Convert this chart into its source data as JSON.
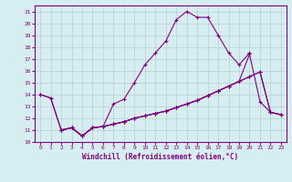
{
  "xlabel": "Windchill (Refroidissement éolien,°C)",
  "background_color": "#d6eef2",
  "line_color": "#800080",
  "grid_color": "#b0c8cc",
  "xlim": [
    -0.5,
    23.5
  ],
  "ylim": [
    10.0,
    21.5
  ],
  "yticks": [
    10,
    11,
    12,
    13,
    14,
    15,
    16,
    17,
    18,
    19,
    20,
    21
  ],
  "xticks": [
    0,
    1,
    2,
    3,
    4,
    5,
    6,
    7,
    8,
    9,
    10,
    11,
    12,
    13,
    14,
    15,
    16,
    17,
    18,
    19,
    20,
    21,
    22,
    23
  ],
  "line1_x": [
    0,
    1,
    2,
    3,
    4,
    5,
    6,
    7,
    8,
    9,
    10,
    11,
    12,
    13,
    14,
    15,
    16,
    17,
    18,
    19,
    20
  ],
  "line1_y": [
    14.0,
    13.7,
    11.0,
    11.2,
    10.5,
    11.2,
    11.3,
    13.2,
    13.6,
    15.0,
    16.5,
    17.5,
    18.5,
    20.3,
    21.0,
    20.5,
    20.5,
    19.0,
    17.5,
    16.5,
    17.5
  ],
  "line2_x": [
    2,
    3,
    4,
    5,
    6,
    7,
    8,
    9,
    10,
    11,
    12,
    13,
    14,
    15,
    16,
    17,
    18,
    19,
    20,
    21,
    22,
    23
  ],
  "line2_y": [
    11.0,
    11.2,
    10.5,
    11.2,
    11.3,
    11.5,
    11.7,
    12.0,
    12.2,
    12.4,
    12.6,
    12.9,
    13.2,
    13.5,
    13.9,
    14.3,
    14.7,
    15.1,
    17.4,
    13.4,
    12.5,
    12.3
  ],
  "line3_x": [
    2,
    3,
    4,
    5,
    6,
    7,
    8,
    9,
    10,
    11,
    12,
    13,
    14,
    15,
    16,
    17,
    18,
    19,
    20,
    21,
    22,
    23
  ],
  "line3_y": [
    11.0,
    11.2,
    10.5,
    11.2,
    11.3,
    11.5,
    11.7,
    12.0,
    12.2,
    12.4,
    12.6,
    12.9,
    13.2,
    13.5,
    13.9,
    14.3,
    14.7,
    15.1,
    15.5,
    15.9,
    12.5,
    12.3
  ],
  "line4_x": [
    0,
    1,
    2,
    3,
    4,
    5,
    6,
    7,
    8,
    9,
    10,
    11,
    12,
    13,
    14,
    15,
    16,
    17,
    18,
    19,
    20,
    21,
    22,
    23
  ],
  "line4_y": [
    14.0,
    13.7,
    11.0,
    11.2,
    10.5,
    11.2,
    11.3,
    11.5,
    11.7,
    12.0,
    12.2,
    12.4,
    12.6,
    12.9,
    13.2,
    13.5,
    13.9,
    14.3,
    14.7,
    15.1,
    15.5,
    15.9,
    12.5,
    12.3
  ]
}
